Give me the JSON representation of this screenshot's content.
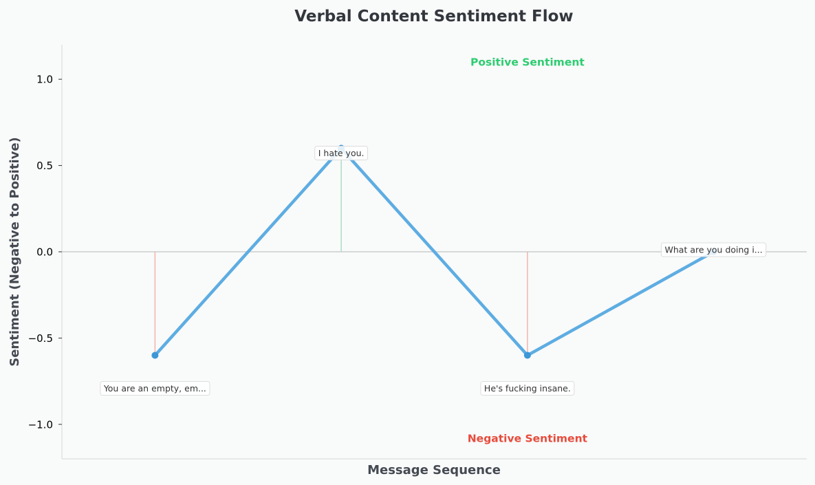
{
  "chart_data": {
    "type": "line",
    "title": "Verbal Content Sentiment Flow",
    "xlabel": "Message Sequence",
    "ylabel": "Sentiment (Negative to Positive)",
    "ylim": [
      -1.2,
      1.2
    ],
    "xlim": [
      -0.5,
      3.5
    ],
    "yticks": [
      1.0,
      0.5,
      0.0,
      -0.5,
      -1.0
    ],
    "ytick_labels": [
      "1.0",
      "0.5",
      "0.0",
      "−0.5",
      "−1.0"
    ],
    "grid": false,
    "zero_line": true,
    "points": [
      {
        "x": 0,
        "y": -0.6,
        "label": "You are an empty, em..."
      },
      {
        "x": 1,
        "y": 0.6,
        "label": "I hate you."
      },
      {
        "x": 2,
        "y": -0.6,
        "label": "He's fucking insane."
      },
      {
        "x": 3,
        "y": 0.0,
        "label": "What are you doing i..."
      }
    ],
    "annotations": {
      "positive": {
        "text": "Positive Sentiment",
        "x": 2,
        "y": 1.1
      },
      "negative": {
        "text": "Negative Sentiment",
        "x": 2,
        "y": -1.08
      }
    },
    "colors": {
      "line": "#5dade2",
      "marker": "#3d97d7",
      "positive": "#2ecc71",
      "negative": "#e74c3c",
      "stem_positive": "#a8dfc3",
      "stem_negative": "#f1b3ab",
      "zero_line": "#cccccc",
      "spine": "#dddddd"
    }
  }
}
